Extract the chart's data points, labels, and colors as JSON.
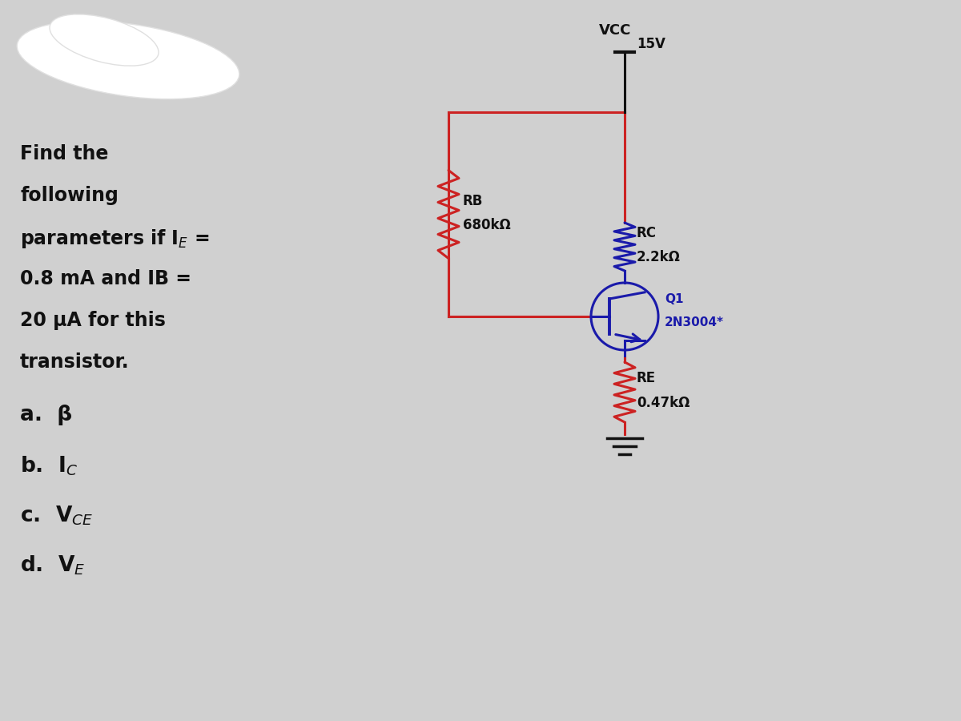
{
  "bg_color": "#d0d0d0",
  "circuit_color": "#cc2222",
  "wire_color": "#1a1aaa",
  "black": "#111111",
  "white": "#ffffff",
  "vcc_label": "VCC",
  "vcc_value": "15V",
  "rb_label": "RB",
  "rb_value": "680kΩ",
  "rc_label": "RC",
  "rc_value": "2.2kΩ",
  "re_label": "RE",
  "re_value": "0.47kΩ",
  "q1_label": "Q1",
  "q1_value": "2N3004*",
  "figsize": [
    12.0,
    9.0
  ],
  "dpi": 100,
  "xlim": [
    0,
    12
  ],
  "ylim": [
    0,
    9
  ]
}
